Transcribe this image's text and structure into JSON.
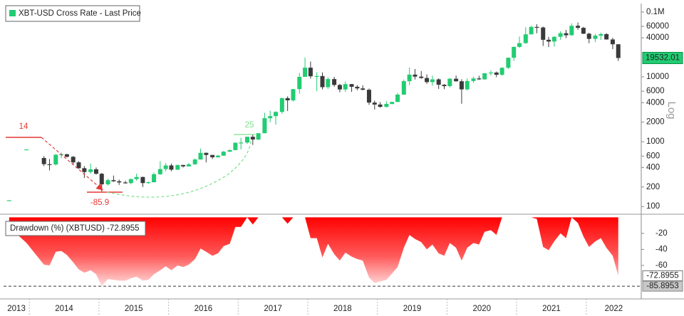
{
  "chart_data": [
    {
      "type": "candlestick",
      "legend": "XBT-USD Cross Rate - Last Price",
      "up_color": "#22cc72",
      "down_color": "#3a3a3a",
      "log_scale": true,
      "scale_label": "Log",
      "xlim": [
        2013.63,
        2022.79
      ],
      "ylim": [
        78,
        135000
      ],
      "yticks": [
        100,
        200,
        400,
        600,
        1000,
        2000,
        4000,
        6000,
        10000,
        40000,
        60000,
        {
          "value": 100000,
          "label": "0.1M"
        }
      ],
      "annotations": [
        {
          "text": "14"
        },
        {
          "text": "-85.9"
        },
        {
          "text": "25"
        }
      ],
      "x": [
        2013.71,
        2013.96,
        2014.21,
        2014.29,
        2014.38,
        2014.46,
        2014.54,
        2014.63,
        2014.71,
        2014.79,
        2014.88,
        2014.96,
        2015.04,
        2015.13,
        2015.21,
        2015.29,
        2015.38,
        2015.46,
        2015.54,
        2015.63,
        2015.71,
        2015.79,
        2015.88,
        2015.96,
        2016.04,
        2016.13,
        2016.21,
        2016.29,
        2016.38,
        2016.46,
        2016.54,
        2016.63,
        2016.71,
        2016.79,
        2016.88,
        2016.96,
        2017.04,
        2017.13,
        2017.21,
        2017.29,
        2017.38,
        2017.46,
        2017.54,
        2017.63,
        2017.71,
        2017.79,
        2017.88,
        2017.96,
        2018.04,
        2018.13,
        2018.21,
        2018.29,
        2018.38,
        2018.46,
        2018.54,
        2018.63,
        2018.71,
        2018.79,
        2018.88,
        2018.96,
        2019.04,
        2019.13,
        2019.21,
        2019.29,
        2019.38,
        2019.46,
        2019.54,
        2019.63,
        2019.71,
        2019.79,
        2019.88,
        2019.96,
        2020.04,
        2020.13,
        2020.21,
        2020.29,
        2020.38,
        2020.46,
        2020.54,
        2020.63,
        2020.71,
        2020.79,
        2020.88,
        2020.96,
        2021.04,
        2021.13,
        2021.21,
        2021.29,
        2021.38,
        2021.46,
        2021.54,
        2021.63,
        2021.71,
        2021.79,
        2021.88,
        2021.96,
        2022.04,
        2022.13,
        2022.21,
        2022.29,
        2022.38,
        2022.46
      ],
      "open": [
        125,
        760,
        560,
        450,
        445,
        630,
        640,
        585,
        480,
        390,
        340,
        375,
        320,
        220,
        255,
        245,
        235,
        230,
        265,
        285,
        230,
        237,
        315,
        378,
        430,
        370,
        437,
        416,
        448,
        531,
        673,
        624,
        575,
        608,
        700,
        742,
        963,
        970,
        1190,
        1080,
        1350,
        2300,
        2480,
        2875,
        4700,
        4340,
        6470,
        10000,
        13850,
        10200,
        10300,
        6930,
        9240,
        7500,
        6390,
        7730,
        7030,
        6630,
        6320,
        4010,
        3740,
        3440,
        3820,
        4100,
        5320,
        8570,
        10820,
        10080,
        9600,
        8300,
        9150,
        7550,
        7190,
        9350,
        8540,
        6410,
        8620,
        9450,
        9140,
        11350,
        11650,
        10780,
        13800,
        19700,
        28990,
        33100,
        45240,
        58920,
        57750,
        37300,
        35040,
        41460,
        47100,
        43790,
        61300,
        57000,
        46300,
        38500,
        43200,
        45540,
        37700,
        31800
      ],
      "high": [
        125,
        760,
        600,
        540,
        640,
        680,
        650,
        600,
        500,
        420,
        460,
        400,
        330,
        270,
        300,
        260,
        250,
        270,
        320,
        290,
        245,
        335,
        500,
        470,
        460,
        440,
        440,
        470,
        550,
        780,
        680,
        625,
        630,
        720,
        760,
        975,
        1150,
        1200,
        1290,
        1360,
        2800,
        3000,
        2950,
        4750,
        5000,
        6500,
        11500,
        19800,
        17200,
        11800,
        11700,
        9800,
        10000,
        7800,
        8500,
        7760,
        7450,
        7400,
        6600,
        4300,
        4090,
        4200,
        4140,
        5650,
        9100,
        13880,
        13200,
        12300,
        10900,
        10400,
        9500,
        7750,
        9600,
        10500,
        9180,
        9470,
        10070,
        10400,
        11500,
        12500,
        12100,
        14000,
        19900,
        29300,
        41900,
        58300,
        61800,
        64800,
        59600,
        41300,
        42400,
        50500,
        52900,
        67000,
        69000,
        59000,
        47900,
        45800,
        48100,
        47400,
        40000,
        31900
      ],
      "low": [
        125,
        760,
        420,
        360,
        430,
        560,
        570,
        450,
        380,
        275,
        320,
        310,
        170,
        210,
        240,
        215,
        225,
        220,
        250,
        200,
        225,
        235,
        305,
        350,
        350,
        365,
        400,
        412,
        440,
        530,
        480,
        540,
        570,
        605,
        700,
        735,
        760,
        920,
        890,
        1060,
        1350,
        2000,
        1830,
        2700,
        2970,
        4150,
        5500,
        10900,
        9400,
        6000,
        6400,
        6500,
        7050,
        5780,
        5850,
        5880,
        6200,
        6200,
        3700,
        3130,
        3350,
        3380,
        3750,
        4090,
        5330,
        7450,
        9100,
        9350,
        7800,
        7300,
        6500,
        6450,
        6850,
        8430,
        3850,
        6150,
        8120,
        8950,
        9030,
        10500,
        9900,
        10400,
        13200,
        17600,
        28000,
        32400,
        45100,
        47000,
        30000,
        28800,
        29300,
        37300,
        39600,
        43300,
        53300,
        45700,
        33000,
        34300,
        37200,
        37600,
        26700,
        17600
      ],
      "close": [
        125,
        760,
        450,
        445,
        630,
        640,
        585,
        480,
        390,
        340,
        375,
        320,
        220,
        255,
        245,
        235,
        230,
        265,
        285,
        230,
        237,
        315,
        378,
        430,
        370,
        437,
        416,
        448,
        531,
        673,
        624,
        575,
        608,
        700,
        742,
        963,
        970,
        1190,
        1080,
        1350,
        2300,
        2480,
        2875,
        4700,
        4340,
        6470,
        10000,
        13850,
        10200,
        10300,
        6930,
        9240,
        7500,
        6390,
        7730,
        7030,
        6630,
        6320,
        4010,
        3740,
        3440,
        3820,
        4100,
        5320,
        8570,
        10820,
        10080,
        9600,
        8300,
        9150,
        7550,
        7190,
        9350,
        8540,
        6410,
        8620,
        9450,
        9140,
        11350,
        11650,
        10780,
        13800,
        19700,
        28990,
        33100,
        45240,
        58920,
        57750,
        37300,
        35040,
        41460,
        47100,
        43790,
        61300,
        57000,
        46300,
        38500,
        43200,
        45540,
        37700,
        31800,
        19532.01
      ]
    },
    {
      "type": "area",
      "xlim": [
        2013.63,
        2022.79
      ],
      "ylim": [
        -100,
        3
      ],
      "yticks": [
        -20,
        -40,
        -60
      ],
      "xticks": [
        2013,
        2014,
        2015,
        2016,
        2017,
        2018,
        2019,
        2020,
        2021,
        2022
      ],
      "max_drawdown": -85.8953,
      "x": [
        2013.71,
        2013.96,
        2014.21,
        2014.29,
        2014.38,
        2014.46,
        2014.54,
        2014.63,
        2014.71,
        2014.79,
        2014.88,
        2014.96,
        2015.04,
        2015.13,
        2015.21,
        2015.29,
        2015.38,
        2015.46,
        2015.54,
        2015.63,
        2015.71,
        2015.79,
        2015.88,
        2015.96,
        2016.04,
        2016.13,
        2016.21,
        2016.29,
        2016.38,
        2016.46,
        2016.54,
        2016.63,
        2016.71,
        2016.79,
        2016.88,
        2016.96,
        2017.04,
        2017.13,
        2017.21,
        2017.29,
        2017.38,
        2017.46,
        2017.54,
        2017.63,
        2017.71,
        2017.79,
        2017.88,
        2017.96,
        2018.04,
        2018.13,
        2018.21,
        2018.29,
        2018.38,
        2018.46,
        2018.54,
        2018.63,
        2018.71,
        2018.79,
        2018.88,
        2018.96,
        2019.04,
        2019.13,
        2019.21,
        2019.29,
        2019.38,
        2019.46,
        2019.54,
        2019.63,
        2019.71,
        2019.79,
        2019.88,
        2019.96,
        2020.04,
        2020.13,
        2020.21,
        2020.29,
        2020.38,
        2020.46,
        2020.54,
        2020.63,
        2020.71,
        2020.79,
        2020.88,
        2020.96,
        2021.04,
        2021.13,
        2021.21,
        2021.29,
        2021.38,
        2021.46,
        2021.54,
        2021.63,
        2021.71,
        2021.79,
        2021.88,
        2021.96,
        2022.04,
        2022.13,
        2022.21,
        2022.29,
        2022.38,
        2022.46
      ],
      "series": [
        {
          "name": "Drawdown (%) (XBTUSD) -72.8955",
          "color": "#ff0000",
          "values": [
            -12,
            -32,
            -59,
            -60,
            -43,
            -42,
            -47,
            -56,
            -65,
            -69,
            -66,
            -71,
            -85.8953,
            -77,
            -78,
            -79,
            -79,
            -76,
            -74,
            -79,
            -78,
            -71,
            -66,
            -61,
            -66,
            -60,
            -62,
            -59,
            -52,
            -39,
            -43,
            -48,
            -45,
            -36,
            -33,
            -12,
            -12,
            0,
            -9,
            0,
            0,
            0,
            0,
            0,
            -8,
            0,
            0,
            0,
            -26,
            -26,
            -50,
            -33,
            -46,
            -54,
            -44,
            -49,
            -52,
            -54,
            -75,
            -82,
            -80,
            -78,
            -70,
            -62,
            -38,
            -22,
            -27,
            -31,
            -40,
            -34,
            -45,
            -48,
            -32,
            -38,
            -54,
            -38,
            -32,
            -34,
            -18,
            -16,
            -22,
            0,
            0,
            0,
            0,
            0,
            0,
            -2,
            -37,
            -41,
            -30,
            -20,
            -26,
            0,
            -7,
            -24,
            -37,
            -30,
            -26,
            -38,
            -48,
            -72.8955
          ]
        }
      ]
    }
  ]
}
